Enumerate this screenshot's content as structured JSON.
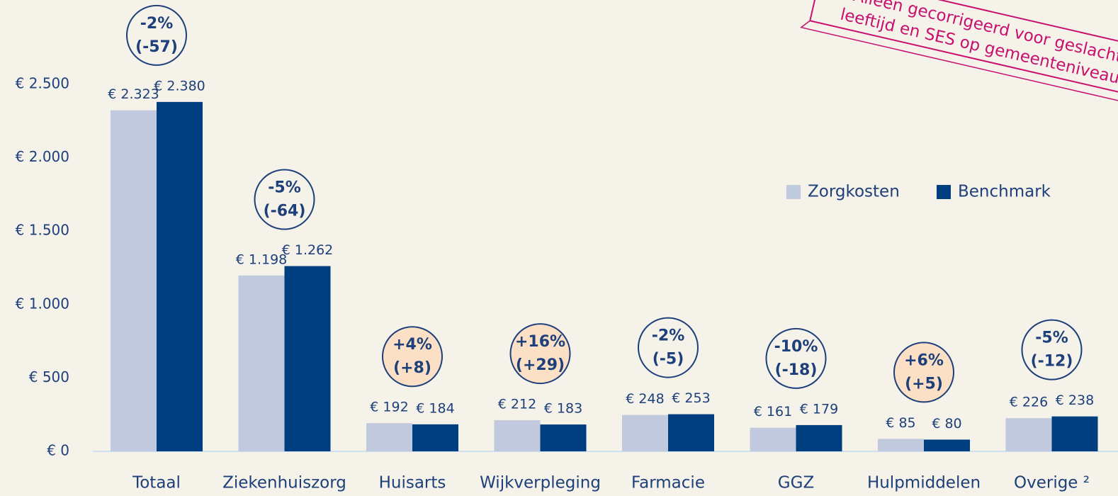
{
  "chart_data": {
    "type": "bar",
    "categories": [
      "Totaal",
      "Ziekenhuiszorg",
      "Huisarts",
      "Wijkverpleging",
      "Farmacie",
      "GGZ",
      "Hulpmiddelen",
      "Overige ²"
    ],
    "series": [
      {
        "name": "Zorgkosten",
        "color": "#c0c9de",
        "values": [
          2323,
          1198,
          192,
          212,
          248,
          161,
          85,
          226
        ],
        "value_labels": [
          "€ 2.323",
          "€ 1.198",
          "€ 192",
          "€ 212",
          "€ 248",
          "€ 161",
          "€ 85",
          "€ 226"
        ]
      },
      {
        "name": "Benchmark",
        "color": "#003f7f",
        "values": [
          2380,
          1262,
          184,
          183,
          253,
          179,
          80,
          238
        ],
        "value_labels": [
          "€ 2.380",
          "€ 1.262",
          "€ 184",
          "€ 183",
          "€ 253",
          "€ 179",
          "€ 80",
          "€ 238"
        ]
      }
    ],
    "annotations": [
      {
        "lines": [
          "-2%",
          "(-57)"
        ],
        "color": "#f5f2ea"
      },
      {
        "lines": [
          "-5%",
          "(-64)"
        ],
        "color": "#f5f2ea"
      },
      {
        "lines": [
          "+4%",
          "(+8)"
        ],
        "color": "#fbe0c6"
      },
      {
        "lines": [
          "+16%",
          "(+29)"
        ],
        "color": "#fbe0c6"
      },
      {
        "lines": [
          "-2%",
          "(-5)"
        ],
        "color": "#f5f2ea"
      },
      {
        "lines": [
          "-10%",
          "(-18)"
        ],
        "color": "#f5f2ea"
      },
      {
        "lines": [
          "+6%",
          "(+5)"
        ],
        "color": "#fbe0c6"
      },
      {
        "lines": [
          "-5%",
          "(-12)"
        ],
        "color": "#f5f2ea"
      }
    ],
    "stamp": [
      "Alleen  gecorrigeerd voor geslacht,",
      "leeftijd en SES op gemeenteniveau"
    ],
    "ylim": [
      0,
      2500
    ],
    "yticks": [
      {
        "value": 0,
        "label": "€ 0"
      },
      {
        "value": 500,
        "label": "€ 500"
      },
      {
        "value": 1000,
        "label": "€ 1.000"
      },
      {
        "value": 1500,
        "label": "€ 1.500"
      },
      {
        "value": 2000,
        "label": "€ 2.000"
      },
      {
        "value": 2500,
        "label": "€ 2.500"
      }
    ],
    "grid": false,
    "legend": "upper right"
  }
}
